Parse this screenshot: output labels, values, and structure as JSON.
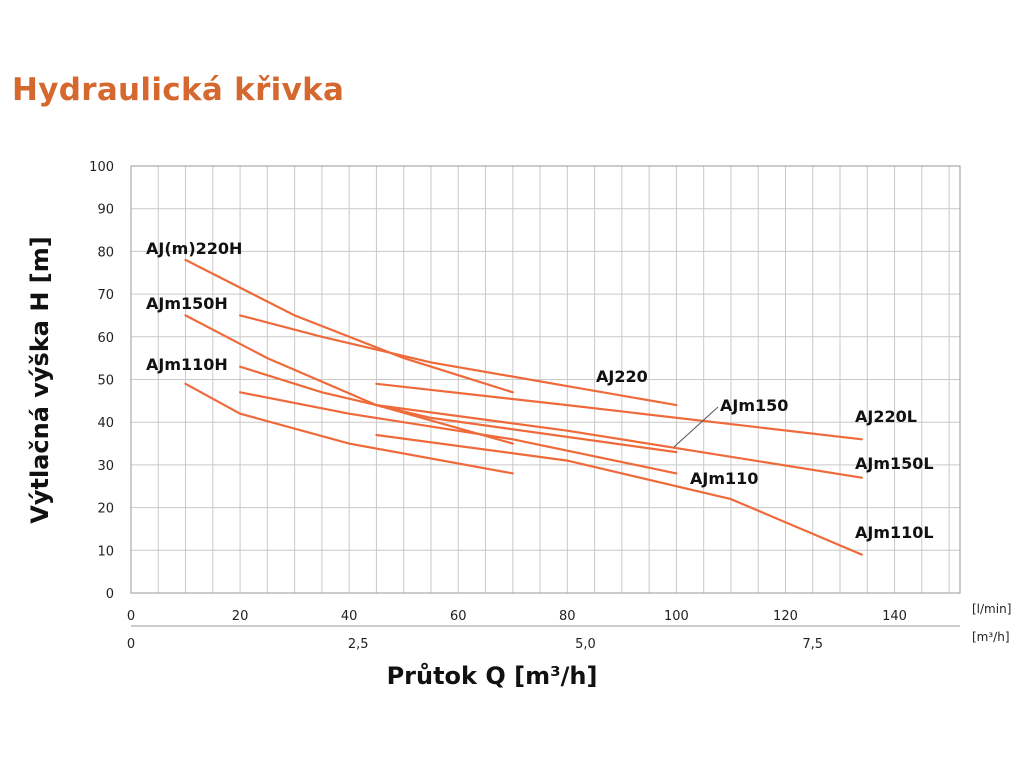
{
  "page": {
    "title": "Hydraulická křivka",
    "accent_color": "#d5682f"
  },
  "chart_data": {
    "type": "line",
    "ylabel": "Výtlačná výška H [m]",
    "xlabel": "Průtok Q [m³/h]",
    "ylim": [
      0,
      100
    ],
    "xlim": [
      0,
      152
    ],
    "yticks": [
      "0",
      "10",
      "20",
      "30",
      "40",
      "50",
      "60",
      "70",
      "80",
      "90",
      "100"
    ],
    "x_axis_lmin": {
      "ticks": [
        0,
        20,
        40,
        60,
        80,
        100,
        120,
        140
      ],
      "labels": [
        "0",
        "20",
        "40",
        "60",
        "80",
        "100",
        "120",
        "140"
      ],
      "unit": "[l/min]"
    },
    "x_axis_m3h": {
      "ticks": [
        0,
        2.5,
        5.0,
        7.5
      ],
      "labels": [
        "0",
        "2,5",
        "5,0",
        "7,5"
      ],
      "unit": "[m³/h]"
    },
    "grid": true,
    "line_color": "#ef6a3a",
    "series": [
      {
        "name": "AJ(m)220H",
        "x": [
          10,
          30,
          50,
          70
        ],
        "y": [
          78,
          65,
          55,
          47
        ]
      },
      {
        "name": "AJm150H",
        "x": [
          10,
          25,
          45,
          70
        ],
        "y": [
          65,
          55,
          44,
          35
        ]
      },
      {
        "name": "AJm110H",
        "x": [
          10,
          20,
          40,
          70
        ],
        "y": [
          49,
          42,
          35,
          28
        ]
      },
      {
        "name": "AJ220",
        "x": [
          20,
          35,
          55,
          100
        ],
        "y": [
          65,
          60,
          54,
          44
        ]
      },
      {
        "name": "AJm150",
        "x": [
          20,
          35,
          55,
          100
        ],
        "y": [
          53,
          47,
          41,
          33
        ]
      },
      {
        "name": "AJm110",
        "x": [
          20,
          40,
          70,
          100
        ],
        "y": [
          47,
          42,
          36,
          28
        ]
      },
      {
        "name": "AJ220L",
        "x": [
          45,
          80,
          134
        ],
        "y": [
          49,
          44,
          36
        ]
      },
      {
        "name": "AJm150L",
        "x": [
          45,
          80,
          134
        ],
        "y": [
          44,
          38,
          27
        ]
      },
      {
        "name": "AJm110L",
        "x": [
          45,
          80,
          110,
          134
        ],
        "y": [
          37,
          31,
          22,
          9
        ]
      }
    ],
    "annotations": [
      {
        "text": "AJ(m)220H",
        "series": "AJ(m)220H"
      },
      {
        "text": "AJm150H",
        "series": "AJm150H"
      },
      {
        "text": "AJm110H",
        "series": "AJm110H"
      },
      {
        "text": "AJ220",
        "series": "AJ220"
      },
      {
        "text": "AJm150",
        "series": "AJm150"
      },
      {
        "text": "AJm110",
        "series": "AJm110"
      },
      {
        "text": "AJ220L",
        "series": "AJ220L"
      },
      {
        "text": "AJm150L",
        "series": "AJm150L"
      },
      {
        "text": "AJm110L",
        "series": "AJm110L"
      }
    ]
  }
}
